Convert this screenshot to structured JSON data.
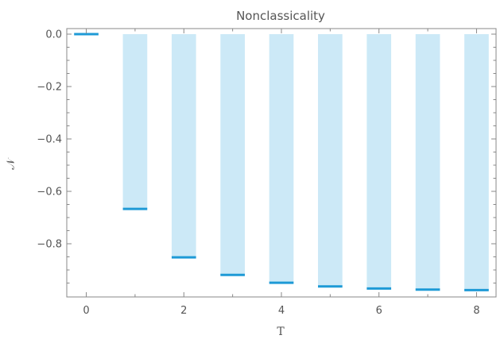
{
  "chart_data": {
    "type": "bar",
    "title": "Nonclassicality",
    "xlabel": "T",
    "ylabel": "𝒩",
    "x": [
      0,
      1,
      2,
      3,
      4,
      5,
      6,
      7,
      8
    ],
    "values": [
      0.0,
      -0.667,
      -0.852,
      -0.919,
      -0.949,
      -0.963,
      -0.971,
      -0.975,
      -0.977
    ],
    "xlim": [
      -0.4,
      8.4
    ],
    "ylim": [
      -1.0,
      0.0
    ],
    "x_ticks": [
      "0",
      "2",
      "4",
      "6",
      "8"
    ],
    "y_ticks": [
      "0.0",
      "−0.2",
      "−0.4",
      "−0.6",
      "−0.8"
    ],
    "grid": false,
    "colors": {
      "bar_fill": "#cce9f7",
      "bar_edge": "#1e9ad6",
      "frame": "#888888",
      "text": "#555555"
    }
  }
}
